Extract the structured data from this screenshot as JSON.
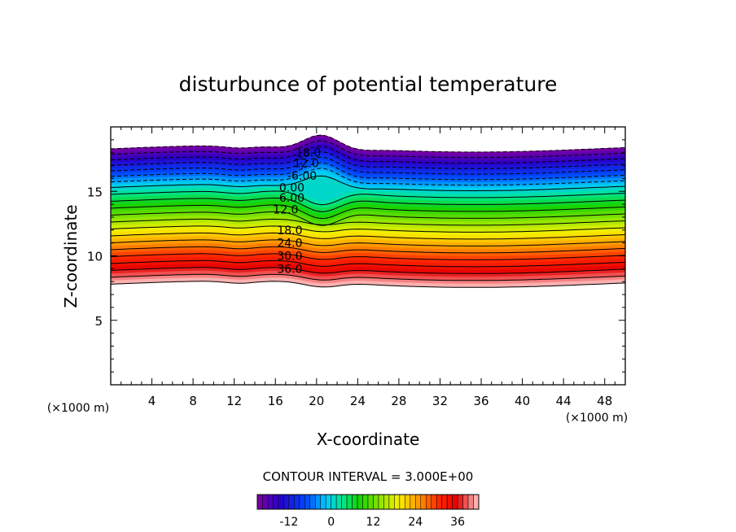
{
  "chart_data": {
    "type": "heatmap",
    "title": "disturbunce of potential temperature",
    "xlabel": "X-coordinate",
    "ylabel": "Z-coordinate",
    "x_unit_label": "(×1000 m)",
    "y_unit_label": "(×1000 m)",
    "xlim": [
      0,
      50
    ],
    "ylim": [
      0,
      20
    ],
    "x_ticks": [
      4,
      8,
      12,
      16,
      20,
      24,
      28,
      32,
      36,
      40,
      44,
      48
    ],
    "y_ticks": [
      5,
      10,
      15
    ],
    "x_tick_labels": [
      "4",
      "8",
      "12",
      "16",
      "20",
      "24",
      "28",
      "32",
      "36",
      "40",
      "44",
      "48"
    ],
    "y_tick_labels": [
      "5",
      "10",
      "15"
    ],
    "contour_interval_text": "CONTOUR INTERVAL = 3.000E+00",
    "contour_interval": 3,
    "value_range": [
      -21,
      42
    ],
    "field": {
      "top_height_km": 18.3,
      "zero_contour_height_km": 15.3,
      "bottom_height_km": 7.8,
      "min_value": -21,
      "max_value": 42
    },
    "contour_labels": [
      {
        "text": "18.0",
        "x": 19.2,
        "y": 18.0
      },
      {
        "text": "12.0",
        "x": 19.0,
        "y": 17.2
      },
      {
        "text": "-6.00",
        "x": 18.6,
        "y": 16.2
      },
      {
        "text": "0.00",
        "x": 17.6,
        "y": 15.3
      },
      {
        "text": "6.00",
        "x": 17.6,
        "y": 14.5
      },
      {
        "text": "12.0",
        "x": 17.0,
        "y": 13.6
      },
      {
        "text": "18.0",
        "x": 17.4,
        "y": 12.0
      },
      {
        "text": "24.0",
        "x": 17.4,
        "y": 11.0
      },
      {
        "text": "30.0",
        "x": 17.4,
        "y": 10.0
      },
      {
        "text": "36.0",
        "x": 17.4,
        "y": 9.0
      }
    ],
    "colorbar": {
      "ticks": [
        -12,
        0,
        12,
        24,
        36
      ],
      "tick_labels": [
        "-12",
        "0",
        "12",
        "24",
        "36"
      ],
      "min": -21,
      "max": 42,
      "step": 1.5
    },
    "grid": false
  }
}
